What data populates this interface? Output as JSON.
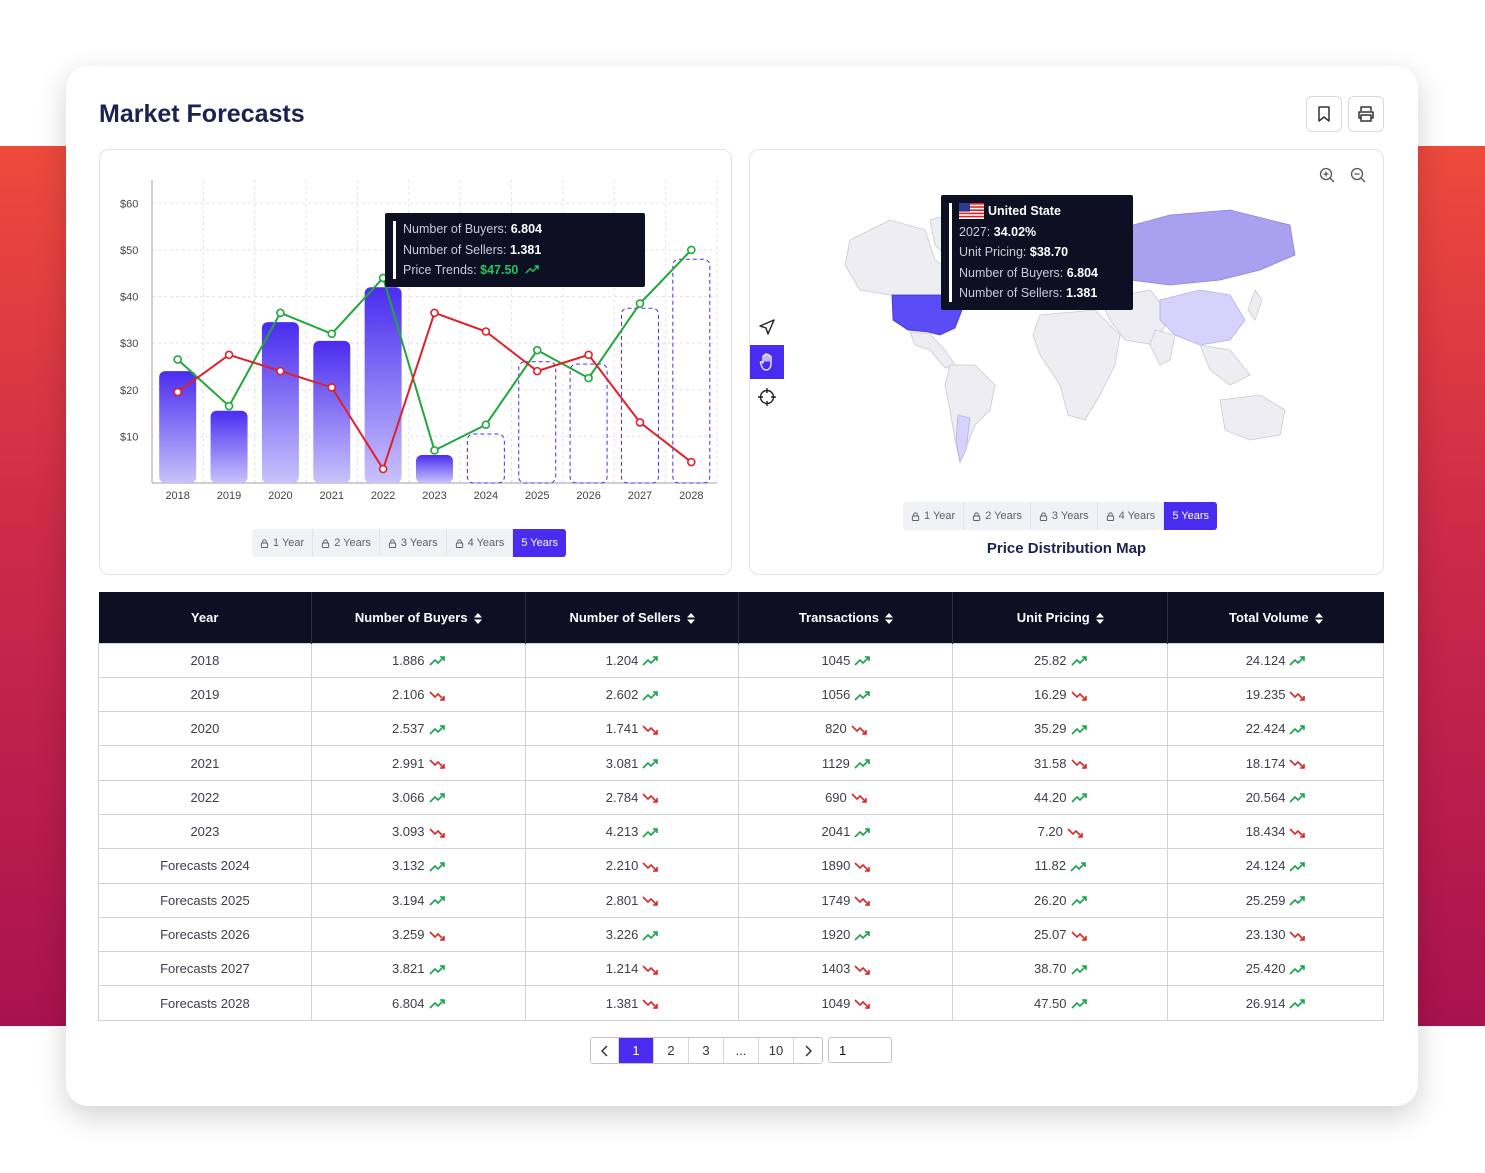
{
  "page": {
    "title": "Market Forecasts"
  },
  "header": {
    "bookmark_icon": "bookmark-icon",
    "print_icon": "printer-icon"
  },
  "colors": {
    "accent": "#4a2cf0",
    "buyers_line": "#1fa83a",
    "sellers_line": "#e0202a",
    "dark": "#0d0f22"
  },
  "chart_tooltip": {
    "buyers_label": "Number of Buyers:",
    "buyers_value": "6.804",
    "sellers_label": "Number of Sellers:",
    "sellers_value": "1.381",
    "price_label": "Price Trends:",
    "price_value": "$47.50"
  },
  "chart_data": {
    "type": "bar",
    "categories": [
      "2018",
      "2019",
      "2020",
      "2021",
      "2022",
      "2023",
      "2024",
      "2025",
      "2026",
      "2027",
      "2028"
    ],
    "yticks": [
      "$10",
      "$20",
      "$30",
      "$40",
      "$50",
      "$60"
    ],
    "ylim": [
      0,
      65
    ],
    "series": [
      {
        "values": [
          24,
          15.5,
          34.5,
          30.5,
          42,
          6,
          10.5,
          26,
          25.5,
          37.5,
          48
        ]
      },
      {
        "values": [
          26.5,
          16.5,
          36.5,
          32,
          44,
          7,
          12.5,
          28.5,
          22.5,
          38.5,
          50
        ]
      },
      {
        "values": [
          19.5,
          27.5,
          24,
          20.5,
          3,
          36.5,
          32.5,
          24,
          27.5,
          13,
          4.5
        ]
      }
    ],
    "forecast_from_index": 6
  },
  "chart_periods": [
    {
      "label": "1 Year",
      "active": false
    },
    {
      "label": "2 Years",
      "active": false
    },
    {
      "label": "3 Years",
      "active": false
    },
    {
      "label": "4 Years",
      "active": false
    },
    {
      "label": "5 Years",
      "active": true
    }
  ],
  "map": {
    "title": "Price Distribution Map",
    "tooltip": {
      "country": "United State",
      "year_label": "2027:",
      "year_value": "34.02%",
      "pricing_label": "Unit Pricing:",
      "pricing_value": "$38.70",
      "buyers_label": "Number of Buyers:",
      "buyers_value": "6.804",
      "sellers_label": "Number of Sellers:",
      "sellers_value": "1.381"
    },
    "periods": [
      {
        "label": "1 Year",
        "active": false
      },
      {
        "label": "2 Years",
        "active": false
      },
      {
        "label": "3 Years",
        "active": false
      },
      {
        "label": "4 Years",
        "active": false
      },
      {
        "label": "5 Years",
        "active": true
      }
    ],
    "tools": [
      "navigate-icon",
      "hand-icon",
      "crosshair-icon"
    ],
    "zoom": [
      "zoom-in-icon",
      "zoom-out-icon"
    ]
  },
  "table": {
    "headers": [
      "Year",
      "Number of Buyers",
      "Number of Sellers",
      "Transactions",
      "Unit Pricing",
      "Total Volume"
    ],
    "rows": [
      {
        "year": "2018",
        "cells": [
          [
            "1.886",
            "up"
          ],
          [
            "1.204",
            "up"
          ],
          [
            "1045",
            "up"
          ],
          [
            "25.82",
            "up"
          ],
          [
            "24.124",
            "up"
          ]
        ]
      },
      {
        "year": "2019",
        "cells": [
          [
            "2.106",
            "down"
          ],
          [
            "2.602",
            "up"
          ],
          [
            "1056",
            "up"
          ],
          [
            "16.29",
            "down"
          ],
          [
            "19.235",
            "down"
          ]
        ]
      },
      {
        "year": "2020",
        "cells": [
          [
            "2.537",
            "up"
          ],
          [
            "1.741",
            "down"
          ],
          [
            "820",
            "down"
          ],
          [
            "35.29",
            "up"
          ],
          [
            "22.424",
            "up"
          ]
        ]
      },
      {
        "year": "2021",
        "cells": [
          [
            "2.991",
            "down"
          ],
          [
            "3.081",
            "up"
          ],
          [
            "1129",
            "up"
          ],
          [
            "31.58",
            "down"
          ],
          [
            "18.174",
            "down"
          ]
        ]
      },
      {
        "year": "2022",
        "cells": [
          [
            "3.066",
            "up"
          ],
          [
            "2.784",
            "down"
          ],
          [
            "690",
            "down"
          ],
          [
            "44.20",
            "up"
          ],
          [
            "20.564",
            "up"
          ]
        ]
      },
      {
        "year": "2023",
        "cells": [
          [
            "3.093",
            "down"
          ],
          [
            "4.213",
            "up"
          ],
          [
            "2041",
            "up"
          ],
          [
            "7.20",
            "down"
          ],
          [
            "18.434",
            "down"
          ]
        ]
      },
      {
        "year": "Forecasts 2024",
        "cells": [
          [
            "3.132",
            "up"
          ],
          [
            "2.210",
            "down"
          ],
          [
            "1890",
            "down"
          ],
          [
            "11.82",
            "up"
          ],
          [
            "24.124",
            "up"
          ]
        ]
      },
      {
        "year": "Forecasts 2025",
        "cells": [
          [
            "3.194",
            "up"
          ],
          [
            "2.801",
            "down"
          ],
          [
            "1749",
            "down"
          ],
          [
            "26.20",
            "up"
          ],
          [
            "25.259",
            "up"
          ]
        ]
      },
      {
        "year": "Forecasts 2026",
        "cells": [
          [
            "3.259",
            "down"
          ],
          [
            "3.226",
            "up"
          ],
          [
            "1920",
            "up"
          ],
          [
            "25.07",
            "down"
          ],
          [
            "23.130",
            "down"
          ]
        ]
      },
      {
        "year": "Forecasts 2027",
        "cells": [
          [
            "3.821",
            "up"
          ],
          [
            "1.214",
            "down"
          ],
          [
            "1403",
            "down"
          ],
          [
            "38.70",
            "up"
          ],
          [
            "25.420",
            "up"
          ]
        ]
      },
      {
        "year": "Forecasts 2028",
        "cells": [
          [
            "6.804",
            "up"
          ],
          [
            "1.381",
            "down"
          ],
          [
            "1049",
            "down"
          ],
          [
            "47.50",
            "up"
          ],
          [
            "26.914",
            "up"
          ]
        ]
      }
    ]
  },
  "pagination": {
    "pages": [
      "1",
      "2",
      "3",
      "...",
      "10"
    ],
    "active": "1",
    "goto_value": "1"
  }
}
